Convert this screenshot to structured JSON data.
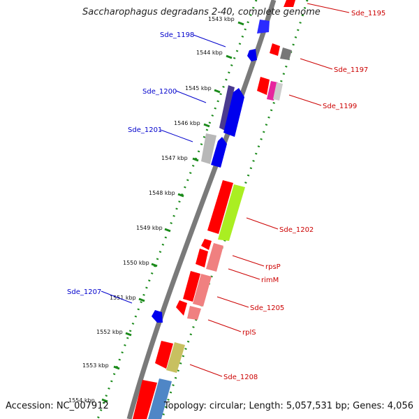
{
  "title": "Saccharophagus degradans 2-40, complete genome",
  "accession_label": "Accession: NC_007912",
  "genome_info": "Topology: circular; Length: 5,057,531 bp; Genes: 4,056",
  "kbp_labels": [
    "1543 kbp",
    "1544 kbp",
    "1545 kbp",
    "1546 kbp",
    "1547 kbp",
    "1548 kbp",
    "1549 kbp",
    "1550 kbp",
    "1551 kbp",
    "1552 kbp",
    "1553 kbp",
    "1554 kbp"
  ],
  "genes_left": [
    {
      "name": "Sde_1198",
      "color": "#0000cc"
    },
    {
      "name": "Sde_1200",
      "color": "#0000cc"
    },
    {
      "name": "Sde_1201",
      "color": "#0000cc"
    },
    {
      "name": "Sde_1207",
      "color": "#0000cc"
    }
  ],
  "genes_right": [
    {
      "name": "Sde_1195",
      "color": "#cc0000"
    },
    {
      "name": "Sde_1197",
      "color": "#cc0000"
    },
    {
      "name": "Sde_1199",
      "color": "#cc0000"
    },
    {
      "name": "Sde_1202",
      "color": "#cc0000"
    },
    {
      "name": "rpsP",
      "color": "#cc0000"
    },
    {
      "name": "rimM",
      "color": "#cc0000"
    },
    {
      "name": "Sde_1205",
      "color": "#cc0000"
    },
    {
      "name": "rplS",
      "color": "#cc0000"
    },
    {
      "name": "Sde_1208",
      "color": "#cc0000"
    }
  ]
}
